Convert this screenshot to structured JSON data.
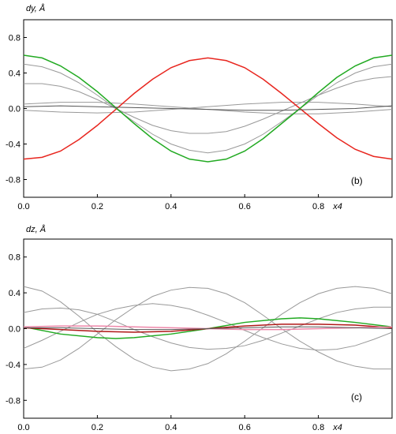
{
  "chart_data": [
    {
      "type": "line",
      "panel_label": "(b)",
      "ylabel": "dy, Å",
      "xlabel": "x4",
      "xlim": [
        0.0,
        1.0
      ],
      "ylim": [
        -1.0,
        1.0
      ],
      "xticks": [
        "0.0",
        "0.2",
        "0.4",
        "0.6",
        "0.8"
      ],
      "yticks": [
        "0.8",
        "0.4",
        "0.0",
        "-0.4",
        "-0.8"
      ],
      "grid": false,
      "series": [
        {
          "color": "#e8261f",
          "x": [
            0.0,
            0.05,
            0.1,
            0.15,
            0.2,
            0.25,
            0.3,
            0.35,
            0.4,
            0.45,
            0.5,
            0.55,
            0.6,
            0.65,
            0.7,
            0.75,
            0.8,
            0.85,
            0.9,
            0.95,
            1.0
          ],
          "y": [
            -0.57,
            -0.55,
            -0.48,
            -0.35,
            -0.19,
            -0.01,
            0.17,
            0.33,
            0.46,
            0.54,
            0.57,
            0.54,
            0.46,
            0.33,
            0.17,
            0.0,
            -0.17,
            -0.33,
            -0.46,
            -0.54,
            -0.57
          ]
        },
        {
          "color": "#22aa22",
          "x": [
            0.0,
            0.05,
            0.1,
            0.15,
            0.2,
            0.25,
            0.3,
            0.35,
            0.4,
            0.45,
            0.5,
            0.55,
            0.6,
            0.65,
            0.7,
            0.75,
            0.8,
            0.85,
            0.9,
            0.95,
            1.0
          ],
          "y": [
            0.6,
            0.57,
            0.48,
            0.35,
            0.19,
            0.01,
            -0.17,
            -0.34,
            -0.48,
            -0.57,
            -0.6,
            -0.57,
            -0.48,
            -0.34,
            -0.17,
            0.0,
            0.18,
            0.35,
            0.48,
            0.57,
            0.6
          ]
        },
        {
          "color": "#999999",
          "x": [
            0.0,
            0.05,
            0.1,
            0.15,
            0.2,
            0.25,
            0.3,
            0.35,
            0.4,
            0.45,
            0.5,
            0.55,
            0.6,
            0.65,
            0.7,
            0.75,
            0.8,
            0.85,
            0.9,
            0.95,
            1.0
          ],
          "y": [
            0.5,
            0.47,
            0.4,
            0.29,
            0.15,
            0.0,
            -0.15,
            -0.29,
            -0.4,
            -0.47,
            -0.5,
            -0.47,
            -0.4,
            -0.29,
            -0.15,
            0.0,
            0.15,
            0.29,
            0.4,
            0.47,
            0.5
          ]
        },
        {
          "color": "#999999",
          "x": [
            0.0,
            0.05,
            0.1,
            0.15,
            0.2,
            0.25,
            0.3,
            0.35,
            0.4,
            0.45,
            0.5,
            0.55,
            0.6,
            0.65,
            0.7,
            0.75,
            0.8,
            0.85,
            0.9,
            0.95,
            1.0
          ],
          "y": [
            0.28,
            0.28,
            0.25,
            0.19,
            0.1,
            0.0,
            -0.1,
            -0.19,
            -0.25,
            -0.28,
            -0.28,
            -0.26,
            -0.2,
            -0.12,
            -0.03,
            0.06,
            0.15,
            0.23,
            0.3,
            0.34,
            0.36
          ]
        },
        {
          "color": "#999999",
          "x": [
            0.0,
            0.1,
            0.2,
            0.3,
            0.4,
            0.5,
            0.6,
            0.7,
            0.8,
            0.9,
            1.0
          ],
          "y": [
            0.05,
            0.07,
            0.07,
            0.05,
            0.02,
            -0.01,
            -0.04,
            -0.06,
            -0.06,
            -0.04,
            -0.01
          ]
        },
        {
          "color": "#999999",
          "x": [
            0.0,
            0.1,
            0.2,
            0.3,
            0.4,
            0.5,
            0.6,
            0.7,
            0.8,
            0.9,
            1.0
          ],
          "y": [
            -0.02,
            -0.04,
            -0.05,
            -0.04,
            -0.01,
            0.02,
            0.05,
            0.07,
            0.07,
            0.05,
            0.02
          ]
        },
        {
          "color": "#555555",
          "x": [
            0.0,
            0.1,
            0.2,
            0.3,
            0.4,
            0.5,
            0.6,
            0.7,
            0.8,
            0.9,
            1.0
          ],
          "y": [
            0.02,
            0.03,
            0.02,
            0.01,
            0.0,
            -0.01,
            -0.02,
            -0.02,
            -0.01,
            0.0,
            0.03
          ]
        }
      ]
    },
    {
      "type": "line",
      "panel_label": "(c)",
      "ylabel": "dz, Å",
      "xlabel": "x4",
      "xlim": [
        0.0,
        1.0
      ],
      "ylim": [
        -1.0,
        1.0
      ],
      "xticks": [
        "0.0",
        "0.2",
        "0.4",
        "0.6",
        "0.8"
      ],
      "yticks": [
        "0.8",
        "0.4",
        "0.0",
        "-0.4",
        "-0.8"
      ],
      "grid": false,
      "series": [
        {
          "color": "#999999",
          "x": [
            0.0,
            0.05,
            0.1,
            0.15,
            0.2,
            0.25,
            0.3,
            0.35,
            0.4,
            0.45,
            0.5,
            0.55,
            0.6,
            0.65,
            0.7,
            0.75,
            0.8,
            0.85,
            0.9,
            0.95,
            1.0
          ],
          "y": [
            0.47,
            0.42,
            0.3,
            0.14,
            -0.04,
            -0.2,
            -0.34,
            -0.43,
            -0.47,
            -0.45,
            -0.39,
            -0.28,
            -0.14,
            0.01,
            0.16,
            0.29,
            0.39,
            0.45,
            0.47,
            0.45,
            0.39
          ]
        },
        {
          "color": "#999999",
          "x": [
            0.0,
            0.05,
            0.1,
            0.15,
            0.2,
            0.25,
            0.3,
            0.35,
            0.4,
            0.45,
            0.5,
            0.55,
            0.6,
            0.65,
            0.7,
            0.75,
            0.8,
            0.85,
            0.9,
            0.95,
            1.0
          ],
          "y": [
            -0.45,
            -0.43,
            -0.35,
            -0.22,
            -0.06,
            0.1,
            0.24,
            0.36,
            0.43,
            0.46,
            0.45,
            0.39,
            0.29,
            0.15,
            0.0,
            -0.14,
            -0.26,
            -0.36,
            -0.42,
            -0.45,
            -0.45
          ]
        },
        {
          "color": "#999999",
          "x": [
            0.0,
            0.05,
            0.1,
            0.15,
            0.2,
            0.25,
            0.3,
            0.35,
            0.4,
            0.45,
            0.5,
            0.55,
            0.6,
            0.65,
            0.7,
            0.75,
            0.8,
            0.85,
            0.9,
            0.95,
            1.0
          ],
          "y": [
            0.18,
            0.22,
            0.23,
            0.21,
            0.16,
            0.08,
            -0.01,
            -0.09,
            -0.16,
            -0.21,
            -0.23,
            -0.22,
            -0.19,
            -0.13,
            -0.05,
            0.03,
            0.11,
            0.18,
            0.22,
            0.24,
            0.24
          ]
        },
        {
          "color": "#999999",
          "x": [
            0.0,
            0.05,
            0.1,
            0.15,
            0.2,
            0.25,
            0.3,
            0.35,
            0.4,
            0.45,
            0.5,
            0.55,
            0.6,
            0.65,
            0.7,
            0.75,
            0.8,
            0.85,
            0.9,
            0.95,
            1.0
          ],
          "y": [
            -0.22,
            -0.13,
            -0.03,
            0.07,
            0.16,
            0.22,
            0.26,
            0.28,
            0.26,
            0.22,
            0.15,
            0.07,
            -0.02,
            -0.1,
            -0.17,
            -0.22,
            -0.24,
            -0.23,
            -0.19,
            -0.12,
            -0.04
          ]
        },
        {
          "color": "#22aa22",
          "x": [
            0.0,
            0.1,
            0.2,
            0.25,
            0.3,
            0.4,
            0.5,
            0.6,
            0.7,
            0.75,
            0.8,
            0.9,
            1.0
          ],
          "y": [
            0.02,
            -0.06,
            -0.1,
            -0.11,
            -0.1,
            -0.06,
            0.0,
            0.07,
            0.11,
            0.12,
            0.11,
            0.07,
            0.02
          ]
        },
        {
          "color": "#b01818",
          "x": [
            0.0,
            0.1,
            0.2,
            0.3,
            0.4,
            0.5,
            0.6,
            0.7,
            0.8,
            0.9,
            1.0
          ],
          "y": [
            0.01,
            -0.01,
            -0.03,
            -0.04,
            -0.03,
            0.0,
            0.03,
            0.05,
            0.05,
            0.04,
            0.01
          ]
        },
        {
          "color": "#ee88aa",
          "x": [
            0.0,
            0.1,
            0.2,
            0.3,
            0.4,
            0.5,
            0.6,
            0.7,
            0.8,
            0.9,
            1.0
          ],
          "y": [
            0.02,
            0.03,
            0.03,
            0.02,
            0.01,
            0.0,
            -0.01,
            -0.01,
            0.0,
            0.01,
            0.02
          ]
        },
        {
          "color": "#555555",
          "x": [
            0.0,
            0.1,
            0.2,
            0.3,
            0.4,
            0.5,
            0.6,
            0.7,
            0.8,
            0.9,
            1.0
          ],
          "y": [
            0.01,
            0.01,
            0.0,
            -0.01,
            -0.01,
            0.0,
            0.01,
            0.02,
            0.02,
            0.01,
            0.0
          ]
        }
      ]
    }
  ]
}
